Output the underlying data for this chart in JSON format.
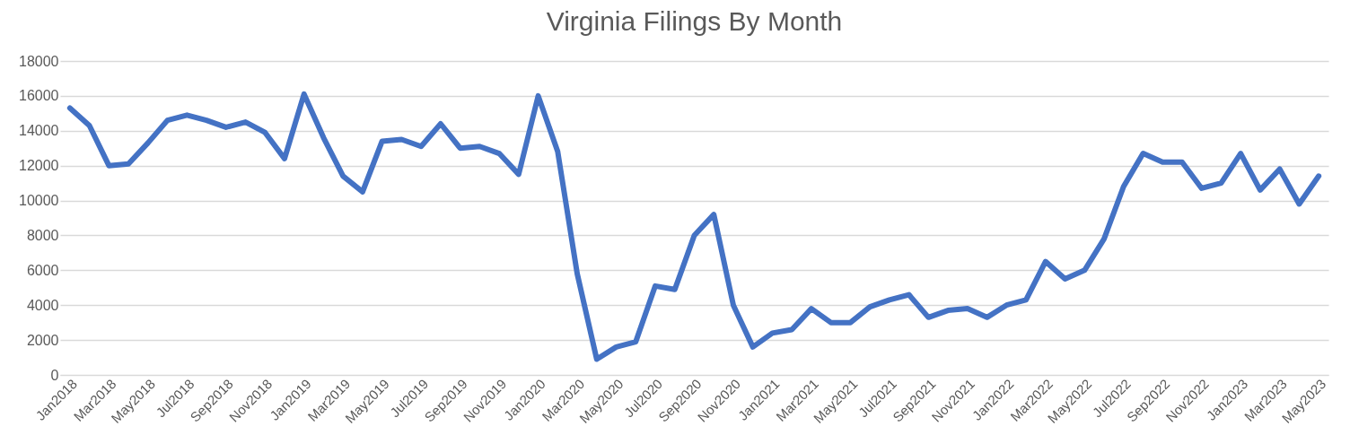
{
  "chart_data": {
    "type": "line",
    "title": "Virginia Filings By Month",
    "categories": [
      "Jan2018",
      null,
      "Mar2018",
      null,
      "May2018",
      null,
      "Jul2018",
      null,
      "Sep2018",
      null,
      "Nov2018",
      null,
      "Jan2019",
      null,
      "Mar2019",
      null,
      "May2019",
      null,
      "Jul2019",
      null,
      "Sep2019",
      null,
      "Nov2019",
      null,
      "Jan2020",
      null,
      "Mar2020",
      null,
      "May2020",
      null,
      "Jul2020",
      null,
      "Sep2020",
      null,
      "Nov2020",
      null,
      "Jan2021",
      null,
      "Mar2021",
      null,
      "May2021",
      null,
      "Jul2021",
      null,
      "Sep2021",
      null,
      "Nov2021",
      null,
      "Jan2022",
      null,
      "Mar2022",
      null,
      "May2022",
      null,
      "Jul2022",
      null,
      "Sep2022",
      null,
      "Nov2022",
      null,
      "Jan2023",
      null,
      "Mar2023",
      null,
      "May2023"
    ],
    "series": [
      {
        "color": "#4472c4",
        "values": [
          15300,
          14300,
          12000,
          12100,
          13300,
          14600,
          14900,
          14600,
          14200,
          14500,
          13900,
          12400,
          16100,
          13600,
          11400,
          10500,
          13400,
          13500,
          13100,
          14400,
          13000,
          13100,
          12700,
          11500,
          16000,
          12800,
          5800,
          900,
          1600,
          1900,
          5100,
          4900,
          8000,
          9200,
          4000,
          1600,
          2400,
          2600,
          3800,
          3000,
          3000,
          3900,
          4300,
          4600,
          3300,
          3700,
          3800,
          3300,
          4000,
          4300,
          6500,
          5500,
          6000,
          7800,
          10800,
          12700,
          12200,
          12200,
          10700,
          11000,
          12700,
          10600,
          11800,
          9800,
          11400
        ]
      }
    ],
    "ylim": [
      0,
      18000
    ],
    "yticks": [
      0,
      2000,
      4000,
      6000,
      8000,
      10000,
      12000,
      14000,
      16000,
      18000
    ],
    "grid": "y",
    "marker": "none",
    "line_style": "solid"
  }
}
